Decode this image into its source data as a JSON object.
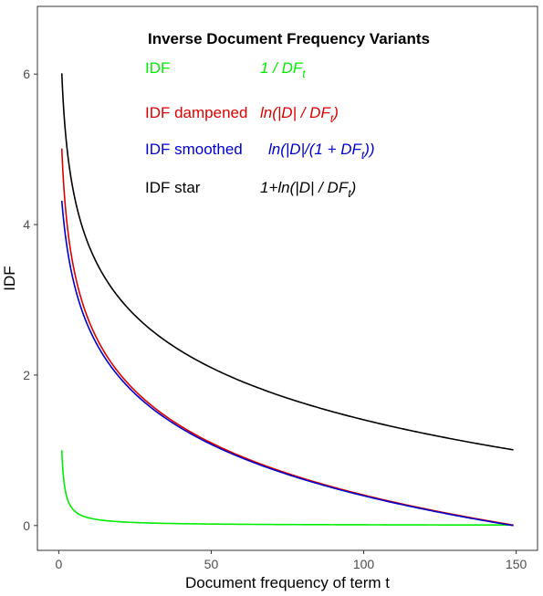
{
  "chart_data": {
    "type": "line",
    "title": "Inverse Document Frequency Variants",
    "xlabel": "Document frequency of term t",
    "ylabel": "IDF",
    "xlim": [
      -7,
      157
    ],
    "ylim": [
      -0.33,
      6.9
    ],
    "xticks": [
      0,
      50,
      100,
      150
    ],
    "yticks": [
      0,
      2,
      4,
      6
    ],
    "grid": false,
    "legend_position": "top-center",
    "n_documents": 150,
    "series": [
      {
        "name": "IDF",
        "formula_main": "1 / DF",
        "formula_sub": "t",
        "formula_end": "",
        "color": "#00ee00",
        "x": [
          1,
          2,
          3,
          5,
          10,
          20,
          50,
          100,
          150
        ],
        "y": [
          1.0,
          0.5,
          0.333,
          0.2,
          0.1,
          0.05,
          0.02,
          0.01,
          0.0067
        ]
      },
      {
        "name": "IDF dampened",
        "formula_main": "ln(|D| / DF",
        "formula_sub": "t",
        "formula_end": ")",
        "color": "#dd0000",
        "x": [
          1,
          2,
          3,
          5,
          10,
          20,
          50,
          100,
          150
        ],
        "y": [
          5.01,
          4.32,
          3.91,
          3.4,
          2.71,
          2.01,
          1.1,
          0.41,
          0.0
        ]
      },
      {
        "name": "IDF smoothed",
        "formula_main": "ln(|D|/(1 + DF",
        "formula_sub": "t",
        "formula_end": "))",
        "color": "#0000cc",
        "x": [
          1,
          2,
          3,
          5,
          10,
          20,
          50,
          100,
          150
        ],
        "y": [
          4.32,
          3.91,
          3.62,
          3.22,
          2.61,
          1.96,
          1.08,
          0.4,
          -0.0066
        ]
      },
      {
        "name": "IDF star",
        "formula_main": "1+ln(|D| / DF",
        "formula_sub": "t",
        "formula_end": ")",
        "color": "#000000",
        "x": [
          1,
          2,
          3,
          5,
          10,
          20,
          50,
          100,
          150
        ],
        "y": [
          6.01,
          5.32,
          4.91,
          4.4,
          3.71,
          3.01,
          2.1,
          1.41,
          1.0
        ]
      }
    ]
  }
}
